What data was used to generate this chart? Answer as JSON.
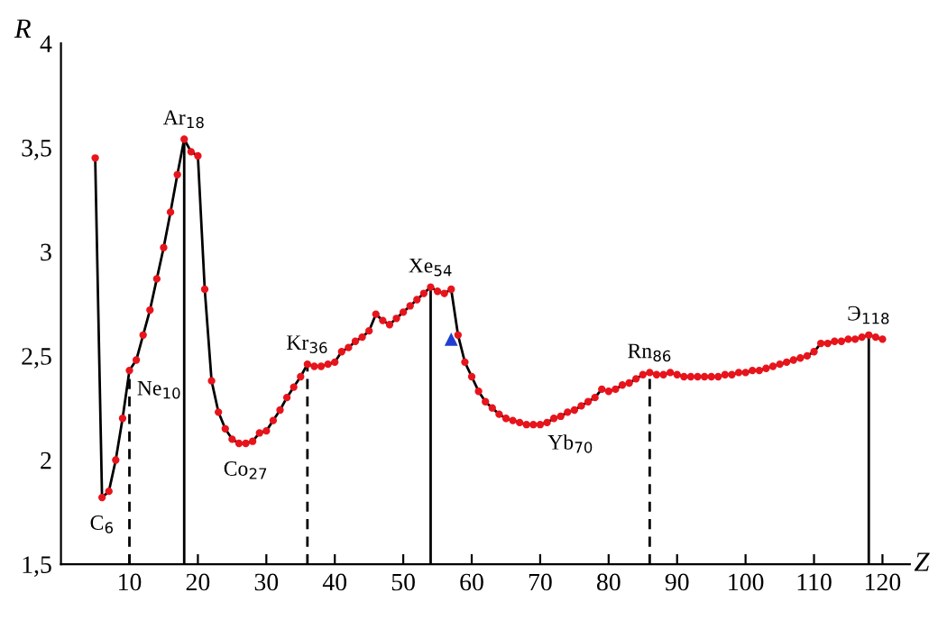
{
  "chart_data": {
    "type": "line",
    "xlabel": "Z",
    "ylabel": "R",
    "xlim": [
      0,
      124
    ],
    "ylim": [
      1.5,
      4
    ],
    "xticks": [
      10,
      20,
      30,
      40,
      50,
      60,
      70,
      80,
      90,
      100,
      110,
      120
    ],
    "yticks": [
      {
        "value": 1.5,
        "label": "1,5"
      },
      {
        "value": 2,
        "label": "2"
      },
      {
        "value": 2.5,
        "label": "2,5"
      },
      {
        "value": 3,
        "label": "3"
      },
      {
        "value": 3.5,
        "label": "3,5"
      },
      {
        "value": 4,
        "label": "4"
      }
    ],
    "grid": false,
    "marker": "circle",
    "line_style": "solid",
    "series": [
      {
        "color": "#000000",
        "colors": [
          "#e8141c",
          "#e8141c",
          "#e8141c",
          "#e8141c",
          "#e8141c",
          "#e8141c",
          "#e8141c",
          "#e8141c",
          "#e8141c",
          "#e8141c",
          "#e8141c",
          "#e8141c",
          "#e8141c",
          "#e8141c",
          "#e8141c",
          "#e8141c",
          "#e8141c",
          "#e8141c",
          "#e8141c",
          "#e8141c",
          "#e8141c",
          "#e8141c",
          "#e8141c",
          "#e8141c",
          "#e8141c",
          "#e8141c",
          "#e8141c",
          "#e8141c",
          "#e8141c",
          "#e8141c",
          "#e8141c",
          "#e8141c",
          "#e8141c",
          "#e8141c",
          "#e8141c",
          "#e8141c",
          "#e8141c",
          "#e8141c",
          "#e8141c",
          "#e8141c",
          "#e8141c",
          "#e8141c",
          "#e8141c",
          "#e8141c",
          "#e8141c",
          "#e8141c",
          "#e8141c",
          "#e8141c",
          "#e8141c",
          "#e8141c",
          "#e8141c",
          "#e8141c",
          "#e8141c",
          "#e8141c",
          "#e8141c",
          "#e8141c",
          "#e8141c",
          "#e8141c",
          "#e8141c",
          "#e8141c",
          "#e8141c",
          "#e8141c",
          "#e8141c",
          "#e8141c",
          "#e8141c",
          "#e8141c",
          "#e8141c",
          "#e8141c",
          "#e8141c",
          "#e8141c",
          "#e8141c",
          "#e8141c",
          "#e8141c",
          "#e8141c",
          "#e8141c",
          "#e8141c",
          "#e8141c",
          "#e8141c",
          "#e8141c",
          "#e8141c",
          "#e8141c",
          "#e8141c",
          "#e8141c",
          "#e8141c",
          "#e8141c",
          "#e8141c",
          "#e8141c",
          "#e8141c",
          "#e8141c",
          "#e8141c",
          "#e8141c",
          "#e8141c",
          "#e8141c",
          "#e8141c",
          "#e8141c",
          "#e8141c",
          "#e8141c",
          "#e8141c",
          "#e8141c",
          "#e8141c",
          "#e8141c",
          "#e8141c",
          "#e8141c",
          "#e8141c",
          "#e8141c",
          "#e8141c",
          "#e8141c",
          "#e8141c",
          "#e8141c",
          "#e8141c",
          "#e8141c",
          "#e8141c",
          "#e8141c",
          "#e8141c",
          "#e8141c",
          "#e8141c"
        ],
        "x": [
          5,
          6,
          7,
          8,
          9,
          10,
          11,
          12,
          13,
          14,
          15,
          16,
          17,
          18,
          19,
          20,
          21,
          22,
          23,
          24,
          25,
          26,
          27,
          28,
          29,
          30,
          31,
          32,
          33,
          34,
          35,
          36,
          37,
          38,
          39,
          40,
          41,
          42,
          43,
          44,
          45,
          46,
          47,
          48,
          49,
          50,
          51,
          52,
          53,
          54,
          55,
          56,
          57,
          58,
          59,
          60,
          61,
          62,
          63,
          64,
          65,
          66,
          67,
          68,
          69,
          70,
          71,
          72,
          73,
          74,
          75,
          76,
          77,
          78,
          79,
          80,
          81,
          82,
          83,
          84,
          85,
          86,
          87,
          88,
          89,
          90,
          91,
          92,
          93,
          94,
          95,
          96,
          97,
          98,
          99,
          100,
          101,
          102,
          103,
          104,
          105,
          106,
          107,
          108,
          109,
          110,
          111,
          112,
          113,
          114,
          115,
          116,
          117,
          118,
          119,
          120
        ],
        "values": [
          3.45,
          1.82,
          1.85,
          2.0,
          2.2,
          2.43,
          2.48,
          2.6,
          2.72,
          2.87,
          3.02,
          3.19,
          3.37,
          3.54,
          3.48,
          3.46,
          2.82,
          2.38,
          2.23,
          2.15,
          2.1,
          2.08,
          2.08,
          2.09,
          2.13,
          2.14,
          2.19,
          2.24,
          2.3,
          2.35,
          2.4,
          2.46,
          2.45,
          2.45,
          2.46,
          2.47,
          2.52,
          2.54,
          2.57,
          2.59,
          2.62,
          2.7,
          2.67,
          2.65,
          2.68,
          2.71,
          2.74,
          2.77,
          2.8,
          2.83,
          2.81,
          2.8,
          2.82,
          2.6,
          2.47,
          2.4,
          2.33,
          2.28,
          2.25,
          2.22,
          2.2,
          2.19,
          2.18,
          2.17,
          2.17,
          2.17,
          2.18,
          2.2,
          2.21,
          2.23,
          2.24,
          2.26,
          2.28,
          2.3,
          2.34,
          2.33,
          2.34,
          2.36,
          2.37,
          2.39,
          2.41,
          2.42,
          2.41,
          2.41,
          2.42,
          2.41,
          2.4,
          2.4,
          2.4,
          2.4,
          2.4,
          2.4,
          2.41,
          2.41,
          2.42,
          2.42,
          2.43,
          2.43,
          2.44,
          2.45,
          2.46,
          2.47,
          2.48,
          2.49,
          2.5,
          2.52,
          2.56,
          2.56,
          2.57,
          2.57,
          2.58,
          2.58,
          2.59,
          2.6,
          2.59,
          2.58
        ]
      },
      {
        "type": "scatter",
        "color": "#1f3fd0",
        "marker": "triangle",
        "x": [
          57
        ],
        "values": [
          2.58
        ]
      }
    ],
    "ref_lines": [
      {
        "axis": "x",
        "value": 10,
        "line_style": "dashed"
      },
      {
        "axis": "x",
        "value": 18,
        "line_style": "solid"
      },
      {
        "axis": "x",
        "value": 36,
        "line_style": "dashed"
      },
      {
        "axis": "x",
        "value": 54,
        "line_style": "solid"
      },
      {
        "axis": "x",
        "value": 86,
        "line_style": "dashed"
      },
      {
        "axis": "x",
        "value": 118,
        "line_style": "solid"
      }
    ],
    "annotations": [
      {
        "text": "C$_{6}$",
        "x": 6,
        "y": 1.82
      },
      {
        "text": "Ne$_{10}$",
        "x": 10,
        "y": 2.43
      },
      {
        "text": "Ar$_{18}$",
        "x": 18,
        "y": 3.54
      },
      {
        "text": "Co$_{27}$",
        "x": 27,
        "y": 2.08
      },
      {
        "text": "Kr$_{36}$",
        "x": 36,
        "y": 2.46
      },
      {
        "text": "Xe$_{54}$",
        "x": 54,
        "y": 2.83
      },
      {
        "text": "Yb$_{70}$",
        "x": 70,
        "y": 2.17
      },
      {
        "text": "Rn$_{86}$",
        "x": 86,
        "y": 2.42
      },
      {
        "text": "Э$_{118}$",
        "x": 118,
        "y": 2.6
      }
    ]
  }
}
